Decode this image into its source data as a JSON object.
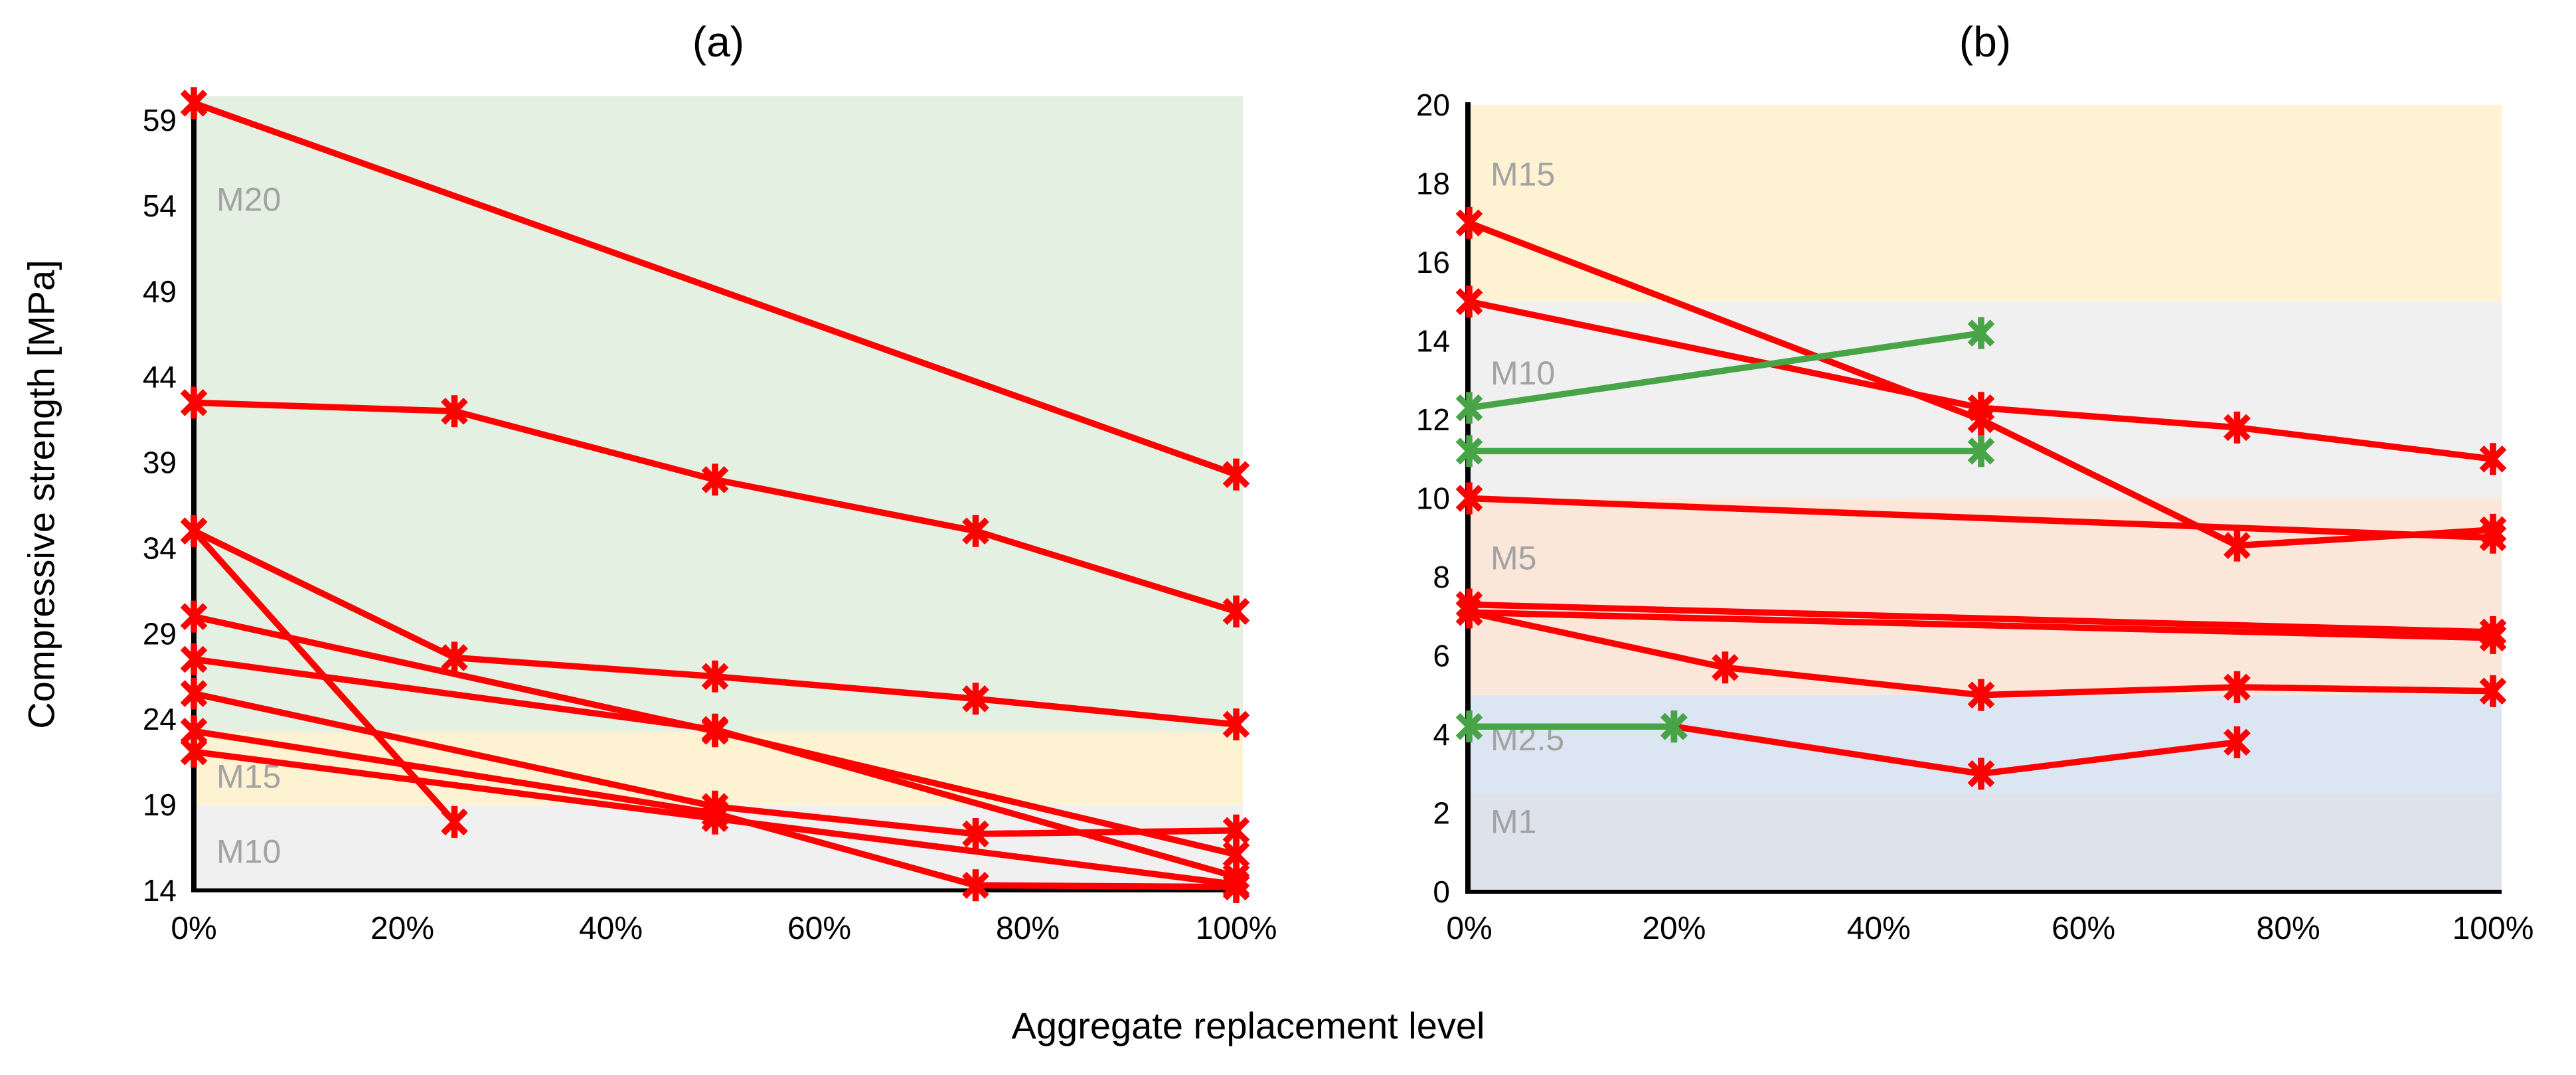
{
  "figure": {
    "y_axis_title": "Compressive strength [MPa]",
    "x_axis_title": "Aggregate replacement level"
  },
  "colors": {
    "red_series": "#fe0000",
    "green_series": "#47a447",
    "band_label": "#a3a3a3",
    "axis": "#000000"
  },
  "chart_data": [
    {
      "id": "a",
      "title": "(a)",
      "type": "line",
      "xlabel": "Aggregate replacement level",
      "ylabel": "Compressive strength [MPa]",
      "grid": false,
      "legend": null,
      "marker": "asterisk",
      "xlim": [
        0,
        100
      ],
      "ylim": [
        14,
        60.4
      ],
      "x_ticks": [
        0,
        20,
        40,
        60,
        80,
        100
      ],
      "x_tick_labels": [
        "0%",
        "20%",
        "40%",
        "60%",
        "80%",
        "100%"
      ],
      "y_ticks": [
        14,
        19,
        24,
        29,
        34,
        39,
        44,
        49,
        54,
        59
      ],
      "bands": [
        {
          "label": "M20",
          "from": 23.25,
          "to": 60.4,
          "color": "#e4f0e2",
          "label_y": 54.4
        },
        {
          "label": "M15",
          "from": 19,
          "to": 23.25,
          "color": "#fdf2d2",
          "label_y": 20.7
        },
        {
          "label": "M10",
          "from": 14,
          "to": 19,
          "color": "#f0f0f0",
          "label_y": 16.3
        }
      ],
      "series": [
        {
          "color": "#fe0000",
          "points": [
            [
              0,
              60
            ],
            [
              100,
              38.3
            ]
          ]
        },
        {
          "color": "#fe0000",
          "points": [
            [
              0,
              42.5
            ],
            [
              25,
              42
            ],
            [
              50,
              38
            ],
            [
              75,
              35
            ],
            [
              100,
              30.3
            ]
          ]
        },
        {
          "color": "#fe0000",
          "points": [
            [
              0,
              35
            ],
            [
              25,
              27.6
            ],
            [
              50,
              26.5
            ],
            [
              75,
              25.2
            ],
            [
              100,
              23.7
            ]
          ]
        },
        {
          "color": "#fe0000",
          "points": [
            [
              0,
              35
            ],
            [
              25,
              18
            ]
          ]
        },
        {
          "color": "#fe0000",
          "points": [
            [
              0,
              30
            ],
            [
              50,
              23.3
            ],
            [
              100,
              16.1
            ]
          ]
        },
        {
          "color": "#fe0000",
          "points": [
            [
              0,
              27.5
            ],
            [
              50,
              23.4
            ],
            [
              100,
              14.8
            ]
          ]
        },
        {
          "color": "#fe0000",
          "points": [
            [
              0,
              25.5
            ],
            [
              50,
              18.9
            ],
            [
              75,
              17.3
            ],
            [
              100,
              17.5
            ]
          ]
        },
        {
          "color": "#fe0000",
          "points": [
            [
              0,
              23.3
            ],
            [
              50,
              18.5
            ],
            [
              75,
              14.3
            ],
            [
              100,
              14.2
            ]
          ]
        },
        {
          "color": "#fe0000",
          "points": [
            [
              0,
              22.1
            ],
            [
              50,
              18.2
            ],
            [
              100,
              14.35
            ]
          ]
        }
      ]
    },
    {
      "id": "b",
      "title": "(b)",
      "type": "line",
      "xlabel": "Aggregate replacement level",
      "ylabel": "Compressive strength [MPa]",
      "grid": false,
      "legend": null,
      "marker": "asterisk",
      "xlim": [
        0,
        100
      ],
      "ylim": [
        0,
        20
      ],
      "x_ticks": [
        0,
        20,
        40,
        60,
        80,
        100
      ],
      "x_tick_labels": [
        "0%",
        "20%",
        "40%",
        "60%",
        "80%",
        "100%"
      ],
      "y_ticks": [
        0,
        2,
        4,
        6,
        8,
        10,
        12,
        14,
        16,
        18,
        20
      ],
      "bands": [
        {
          "label": "M15",
          "from": 15,
          "to": 20,
          "color": "#fdf2d2",
          "label_y": 18.25
        },
        {
          "label": "M10",
          "from": 10,
          "to": 15,
          "color": "#f0f0f0",
          "label_y": 13.2
        },
        {
          "label": "M5",
          "from": 5,
          "to": 10,
          "color": "#fbe7da",
          "label_y": 8.5
        },
        {
          "label": "M2.5",
          "from": 2.5,
          "to": 5,
          "color": "#dce6f2",
          "label_y": 3.9
        },
        {
          "label": "M1",
          "from": 0,
          "to": 2.5,
          "color": "#dee3eb",
          "label_y": 1.8
        }
      ],
      "series": [
        {
          "color": "#fe0000",
          "points": [
            [
              0,
              17
            ],
            [
              50,
              12.0
            ],
            [
              75,
              8.8
            ],
            [
              100,
              9.2
            ]
          ]
        },
        {
          "color": "#fe0000",
          "points": [
            [
              0,
              15
            ],
            [
              50,
              12.3
            ],
            [
              75,
              11.8
            ],
            [
              100,
              11.0
            ]
          ]
        },
        {
          "color": "#fe0000",
          "points": [
            [
              0,
              10
            ],
            [
              100,
              9.0
            ]
          ]
        },
        {
          "color": "#fe0000",
          "points": [
            [
              0,
              7.3
            ],
            [
              100,
              6.6
            ]
          ]
        },
        {
          "color": "#fe0000",
          "points": [
            [
              0,
              7.1
            ],
            [
              100,
              6.45
            ]
          ]
        },
        {
          "color": "#fe0000",
          "points": [
            [
              0,
              7.1
            ],
            [
              25,
              5.7
            ],
            [
              50,
              5.0
            ],
            [
              75,
              5.2
            ],
            [
              100,
              5.1
            ]
          ]
        },
        {
          "color": "#fe0000",
          "points": [
            [
              20,
              4.2
            ],
            [
              50,
              3.0
            ],
            [
              75,
              3.8
            ]
          ]
        },
        {
          "color": "#47a447",
          "points": [
            [
              0,
              12.3
            ],
            [
              50,
              14.2
            ]
          ]
        },
        {
          "color": "#47a447",
          "points": [
            [
              0,
              11.2
            ],
            [
              50,
              11.2
            ]
          ]
        },
        {
          "color": "#47a447",
          "points": [
            [
              0,
              4.2
            ],
            [
              20,
              4.2
            ]
          ]
        }
      ]
    }
  ]
}
